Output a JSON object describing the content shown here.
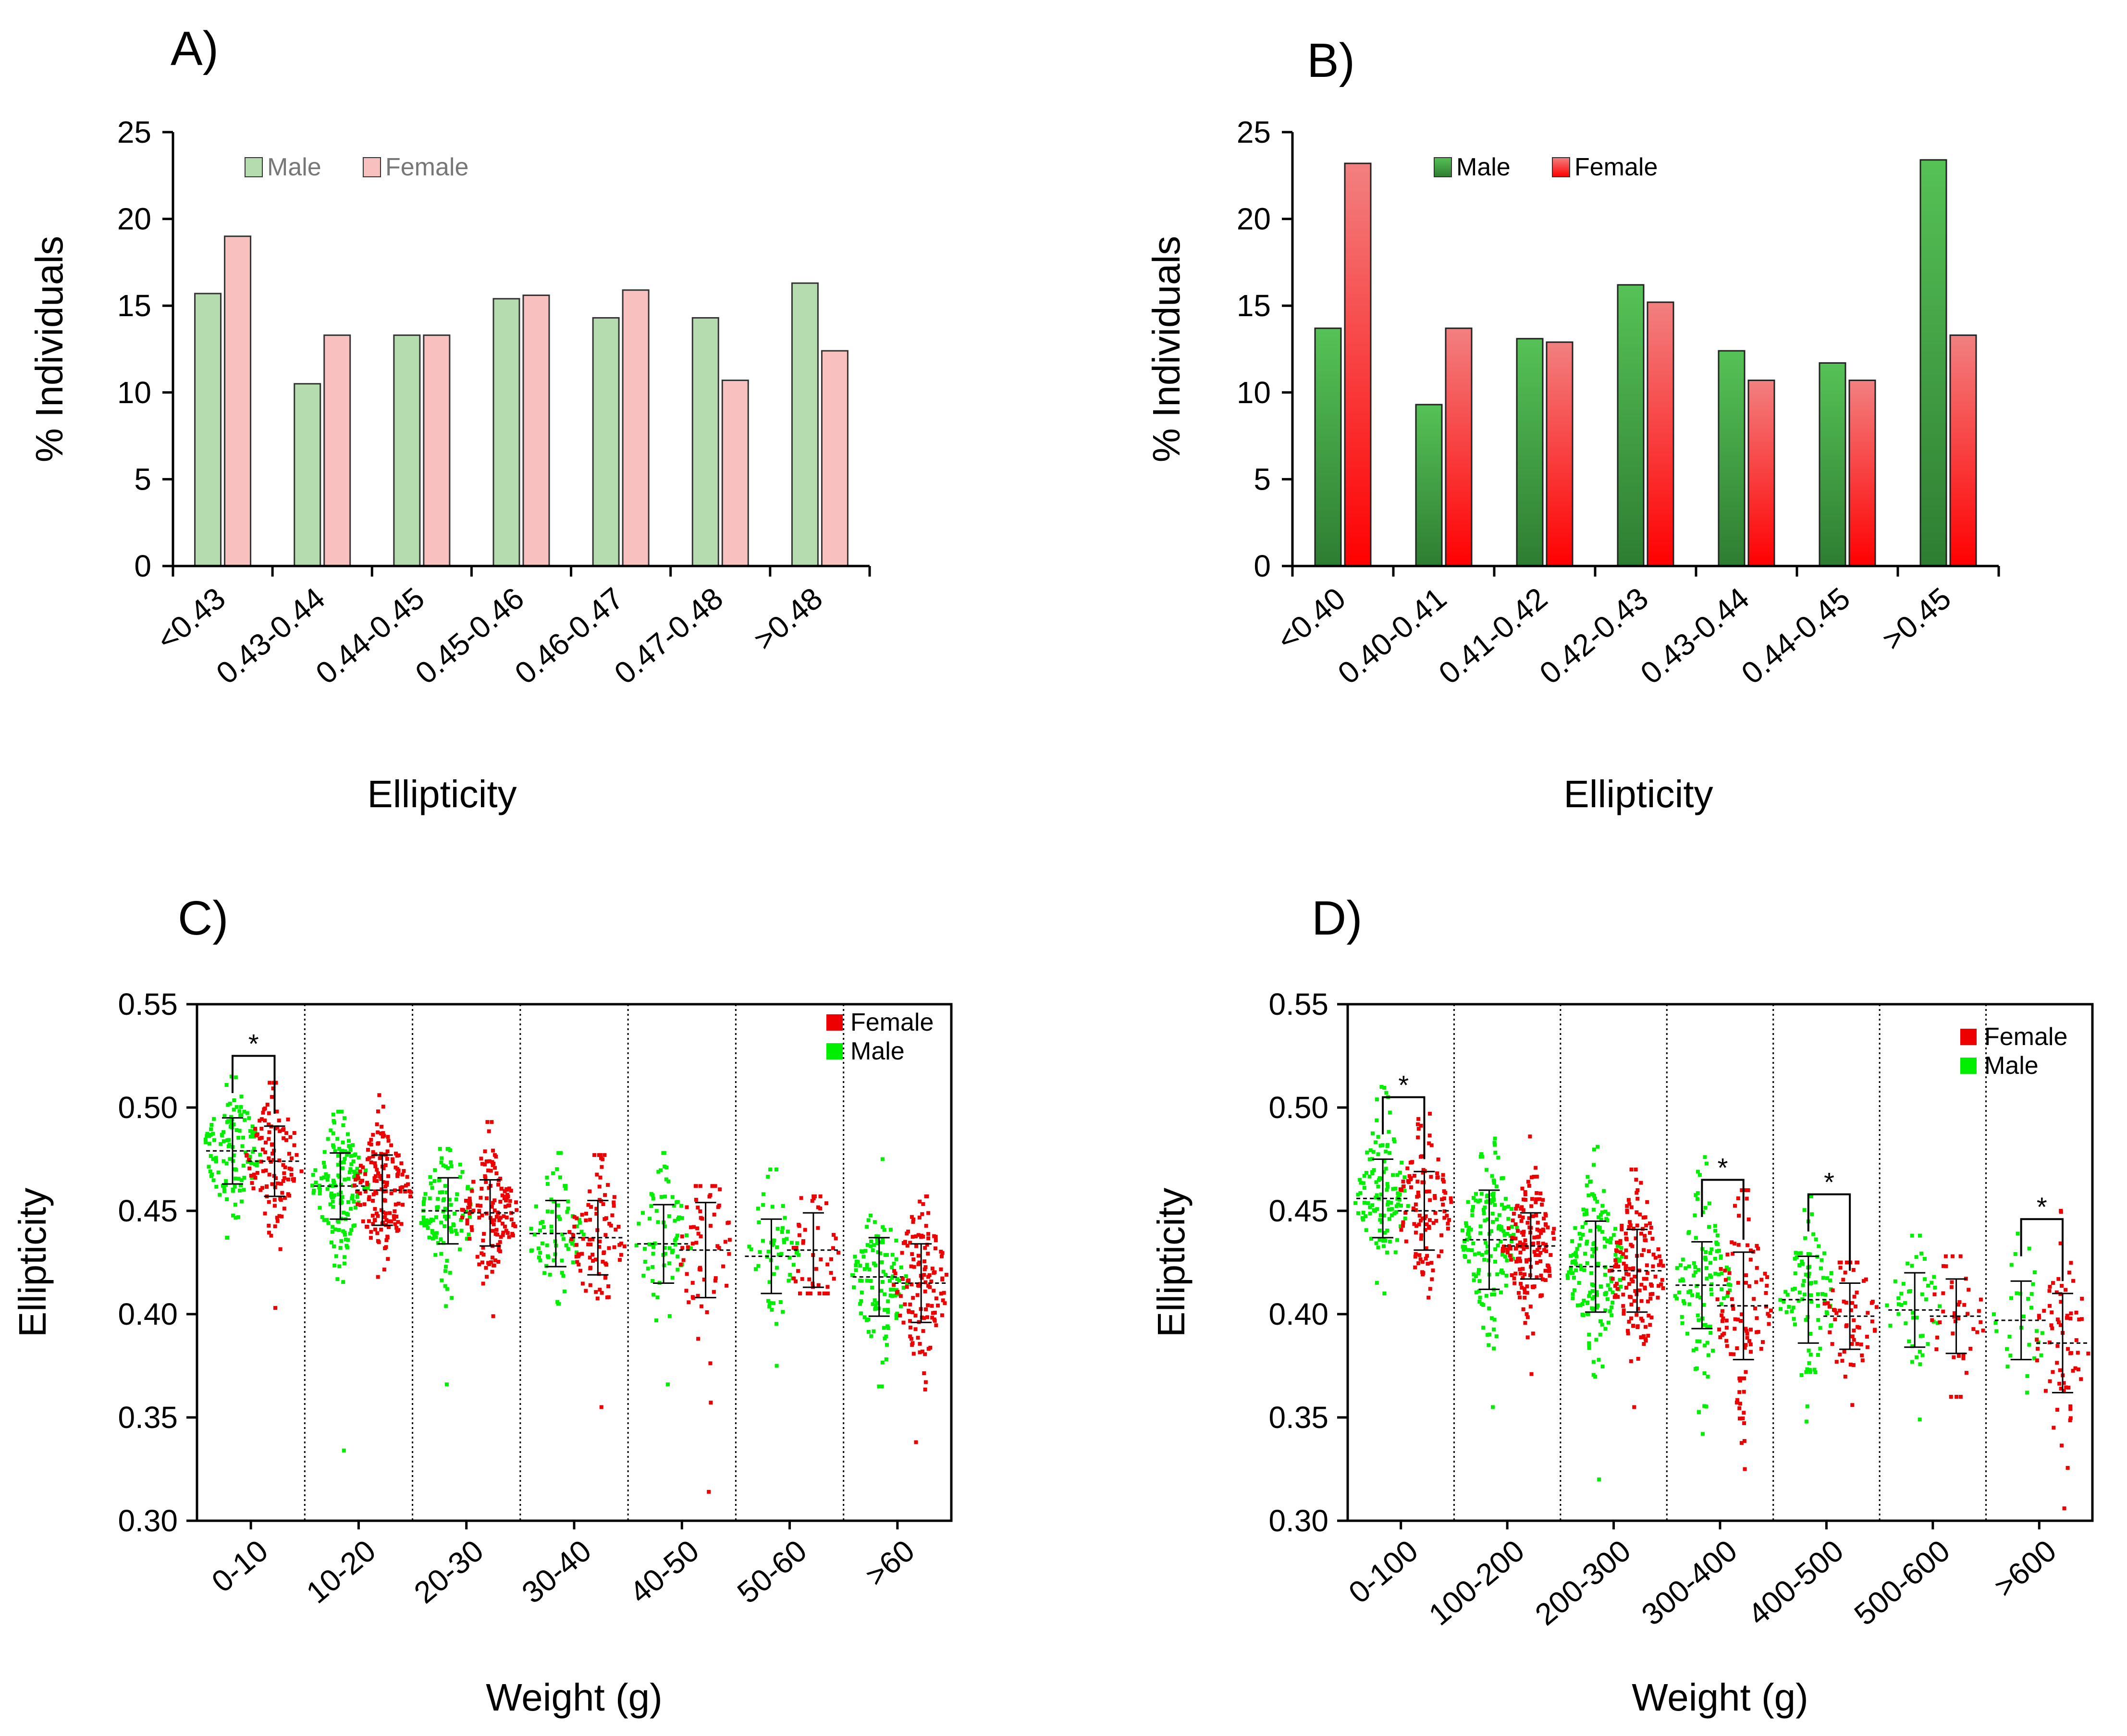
{
  "colors": {
    "light_male": "#b5dcae",
    "light_female": "#f9c0c0",
    "dark_male_top": "#56c256",
    "dark_male_bottom": "#2e7d32",
    "dark_female_top": "#f28080",
    "dark_female_bottom": "#ff0000",
    "scatter_male": "#00ee00",
    "scatter_female": "#ee0000"
  },
  "panels": {
    "A": {
      "label": "A)"
    },
    "B": {
      "label": "B)"
    },
    "C": {
      "label": "C)"
    },
    "D": {
      "label": "D)"
    }
  },
  "chart_data": [
    {
      "id": "A",
      "type": "bar",
      "panel_label": "A)",
      "xlabel": "Ellipticity",
      "ylabel": "% Individuals",
      "ylim": [
        0,
        25
      ],
      "yticks": [
        0,
        5,
        10,
        15,
        20,
        25
      ],
      "categories": [
        "<0.43",
        "0.43-0.44",
        "0.44-0.45",
        "0.45-0.46",
        "0.46-0.47",
        "0.47-0.48",
        ">0.48"
      ],
      "legend": {
        "position": "top-left",
        "entries": [
          "Male",
          "Female"
        ]
      },
      "series": [
        {
          "name": "Male",
          "values": [
            15.7,
            10.5,
            13.3,
            15.4,
            14.3,
            14.3,
            16.3
          ]
        },
        {
          "name": "Female",
          "values": [
            19.0,
            13.3,
            13.3,
            15.6,
            15.9,
            10.7,
            12.4
          ]
        }
      ]
    },
    {
      "id": "B",
      "type": "bar",
      "panel_label": "B)",
      "xlabel": "Ellipticity",
      "ylabel": "% Individuals",
      "ylim": [
        0,
        25
      ],
      "yticks": [
        0,
        5,
        10,
        15,
        20,
        25
      ],
      "categories": [
        "<0.40",
        "0.40-0.41",
        "0.41-0.42",
        "0.42-0.43",
        "0.43-0.44",
        "0.44-0.45",
        ">0.45"
      ],
      "legend": {
        "position": "top-left",
        "entries": [
          "Male",
          "Female"
        ]
      },
      "series": [
        {
          "name": "Male",
          "values": [
            13.7,
            9.3,
            13.1,
            16.2,
            12.4,
            11.7,
            23.4
          ]
        },
        {
          "name": "Female",
          "values": [
            23.2,
            13.7,
            12.9,
            15.2,
            10.7,
            10.7,
            13.3
          ]
        }
      ]
    },
    {
      "id": "C",
      "type": "scatter",
      "panel_label": "C)",
      "xlabel": "Weight (g)",
      "ylabel": "Ellipticity",
      "ylim": [
        0.3,
        0.55
      ],
      "yticks": [
        "0.30",
        "0.35",
        "0.40",
        "0.45",
        "0.50",
        "0.55"
      ],
      "categories": [
        "0-10",
        "10-20",
        "20-30",
        "30-40",
        "40-50",
        "50-60",
        ">60"
      ],
      "legend": {
        "position": "top-right",
        "entries": [
          "Female",
          "Male"
        ]
      },
      "significance": [
        "0-10"
      ],
      "significance_label": "*",
      "series": [
        {
          "name": "Male",
          "mean": [
            0.479,
            0.462,
            0.45,
            0.439,
            0.434,
            0.428,
            0.418
          ],
          "sd": [
            0.016,
            0.016,
            0.016,
            0.016,
            0.019,
            0.018,
            0.019
          ],
          "n": [
            120,
            150,
            110,
            70,
            70,
            55,
            110
          ],
          "min": [
            0.437,
            0.334,
            0.366,
            0.405,
            0.366,
            0.375,
            0.365
          ],
          "max": [
            0.515,
            0.498,
            0.48,
            0.478,
            0.478,
            0.47,
            0.475
          ]
        },
        {
          "name": "Female",
          "mean": [
            0.474,
            0.46,
            0.449,
            0.437,
            0.431,
            0.431,
            0.415
          ],
          "sd": [
            0.017,
            0.017,
            0.016,
            0.018,
            0.023,
            0.018,
            0.019
          ],
          "n": [
            110,
            160,
            140,
            90,
            60,
            45,
            130
          ],
          "min": [
            0.403,
            0.418,
            0.399,
            0.355,
            0.314,
            0.41,
            0.338
          ],
          "max": [
            0.512,
            0.506,
            0.493,
            0.477,
            0.462,
            0.457,
            0.457
          ]
        }
      ]
    },
    {
      "id": "D",
      "type": "scatter",
      "panel_label": "D)",
      "xlabel": "Weight (g)",
      "ylabel": "Ellipticity",
      "ylim": [
        0.3,
        0.55
      ],
      "yticks": [
        "0.30",
        "0.35",
        "0.40",
        "0.45",
        "0.50",
        "0.55"
      ],
      "categories": [
        "0-100",
        "100-200",
        "200-300",
        "300-400",
        "400-500",
        "500-600",
        ">600"
      ],
      "legend": {
        "position": "top-right",
        "entries": [
          "Female",
          "Male"
        ]
      },
      "significance": [
        "0-100",
        "300-400",
        "400-500",
        ">600"
      ],
      "significance_label": "*",
      "series": [
        {
          "name": "Male",
          "mean": [
            0.456,
            0.436,
            0.423,
            0.414,
            0.407,
            0.402,
            0.397
          ],
          "sd": [
            0.019,
            0.024,
            0.022,
            0.021,
            0.021,
            0.018,
            0.019
          ],
          "n": [
            120,
            150,
            160,
            110,
            90,
            45,
            30
          ],
          "min": [
            0.41,
            0.355,
            0.32,
            0.342,
            0.348,
            0.349,
            0.362
          ],
          "max": [
            0.51,
            0.485,
            0.481,
            0.476,
            0.457,
            0.438,
            0.439
          ]
        },
        {
          "name": "Female",
          "mean": [
            0.45,
            0.433,
            0.421,
            0.404,
            0.399,
            0.399,
            0.386
          ],
          "sd": [
            0.019,
            0.016,
            0.02,
            0.026,
            0.016,
            0.018,
            0.024
          ],
          "n": [
            110,
            160,
            150,
            100,
            60,
            40,
            70
          ],
          "min": [
            0.408,
            0.371,
            0.355,
            0.325,
            0.356,
            0.36,
            0.306
          ],
          "max": [
            0.497,
            0.486,
            0.47,
            0.46,
            0.425,
            0.428,
            0.45
          ]
        }
      ]
    }
  ]
}
